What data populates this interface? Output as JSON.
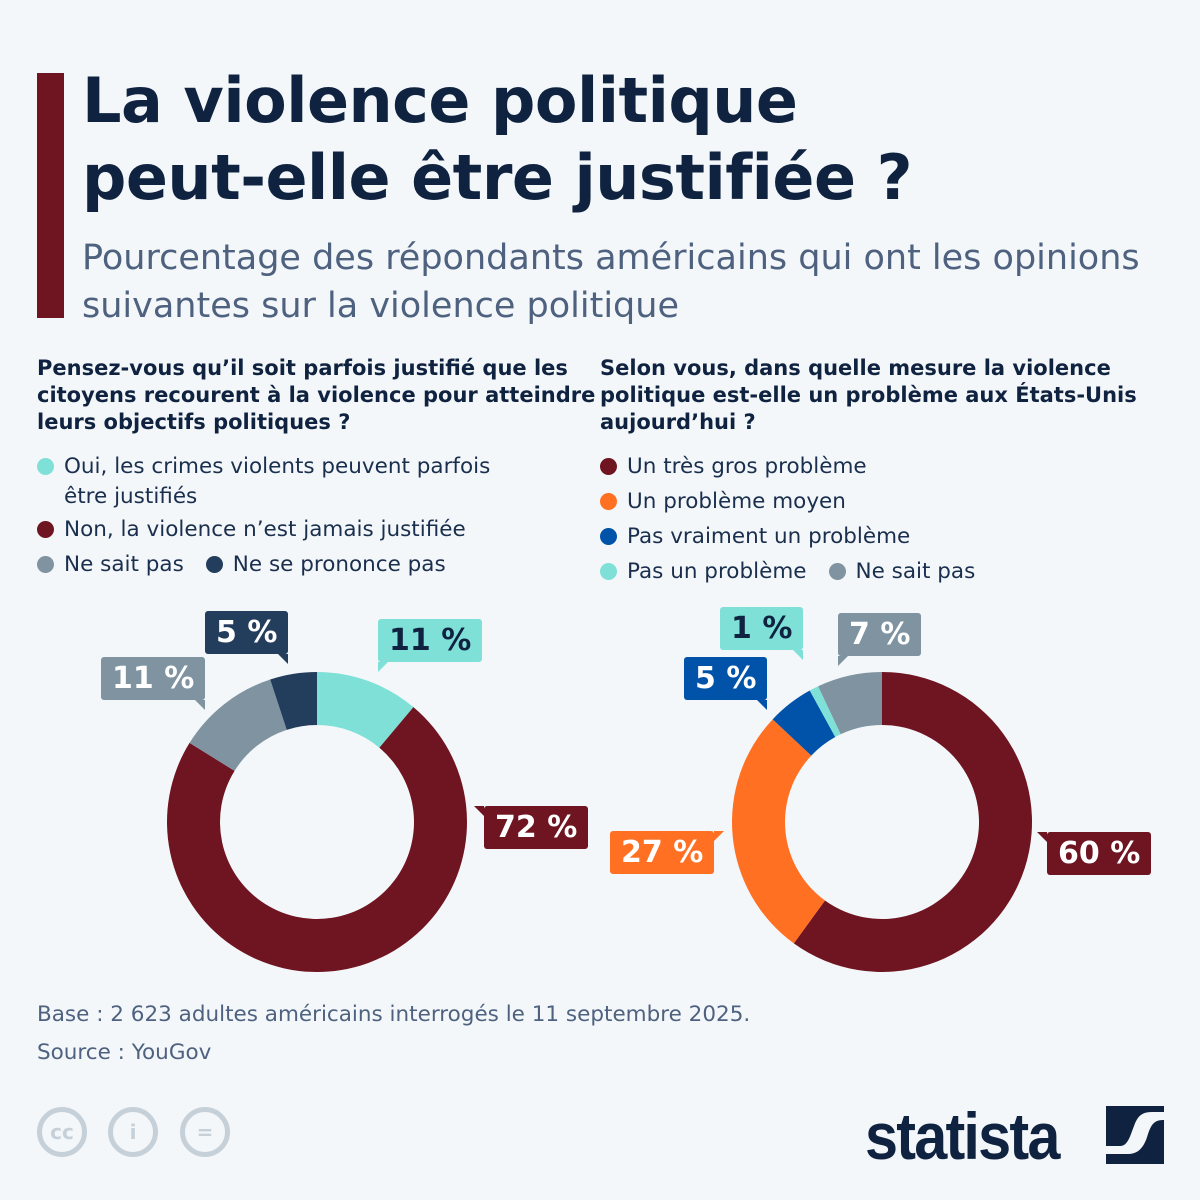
{
  "title_lines": [
    "La violence politique",
    "peut-elle être justifiée ?"
  ],
  "subtitle": "Pourcentage des répondants américains qui ont les opinions suivantes sur la violence politique",
  "chart_data": [
    {
      "type": "pie",
      "donut": true,
      "question": "Pensez-vous qu’il soit parfois justifié que les citoyens recourent à la violence pour atteindre leurs objectifs politiques ?",
      "categories": [
        "Oui, les crimes violents peuvent parfois être justifiés",
        "Non, la violence n’est jamais justifiée",
        "Ne sait pas",
        "Ne se prononce pas"
      ],
      "legend_lines": [
        [
          "Oui, les crimes violents peuvent parfois",
          "être justifiés"
        ],
        [
          "Non, la violence n’est jamais justifiée"
        ],
        [
          "Ne sait pas"
        ],
        [
          "Ne se prononce pas"
        ]
      ],
      "values": [
        11,
        72,
        11,
        5
      ],
      "labels": [
        "11 %",
        "72 %",
        "11 %",
        "5 %"
      ],
      "colors": [
        "#7fe0d8",
        "#6f1421",
        "#7f93a1",
        "#233d5c"
      ],
      "label_text_colors": [
        "#0f2340",
        "#ffffff",
        "#ffffff",
        "#ffffff"
      ],
      "unit": "%"
    },
    {
      "type": "pie",
      "donut": true,
      "question": "Selon vous, dans quelle mesure la violence politique est-elle un problème aux États-Unis aujourd’hui ?",
      "categories": [
        "Un très gros problème",
        "Un problème moyen",
        "Pas vraiment un problème",
        "Pas un problème",
        "Ne sait pas"
      ],
      "legend_lines": [
        [
          "Un très gros problème"
        ],
        [
          "Un problème moyen"
        ],
        [
          "Pas vraiment un problème"
        ],
        [
          "Pas un problème"
        ],
        [
          "Ne sait pas"
        ]
      ],
      "values": [
        60,
        27,
        5,
        1,
        7
      ],
      "labels": [
        "60 %",
        "27 %",
        "5 %",
        "1 %",
        "7 %"
      ],
      "colors": [
        "#6f1421",
        "#ff7023",
        "#0053a8",
        "#7fe0d8",
        "#7f93a1"
      ],
      "label_text_colors": [
        "#ffffff",
        "#ffffff",
        "#ffffff",
        "#0f2340",
        "#ffffff"
      ],
      "unit": "%"
    }
  ],
  "footer": {
    "base": "Base : 2 623 adultes américains interrogés le 11 septembre 2025.",
    "source": "Source : YouGov"
  },
  "license_icons": [
    "cc-icon",
    "attribution-icon",
    "no-derivatives-icon"
  ],
  "brand": "statista"
}
